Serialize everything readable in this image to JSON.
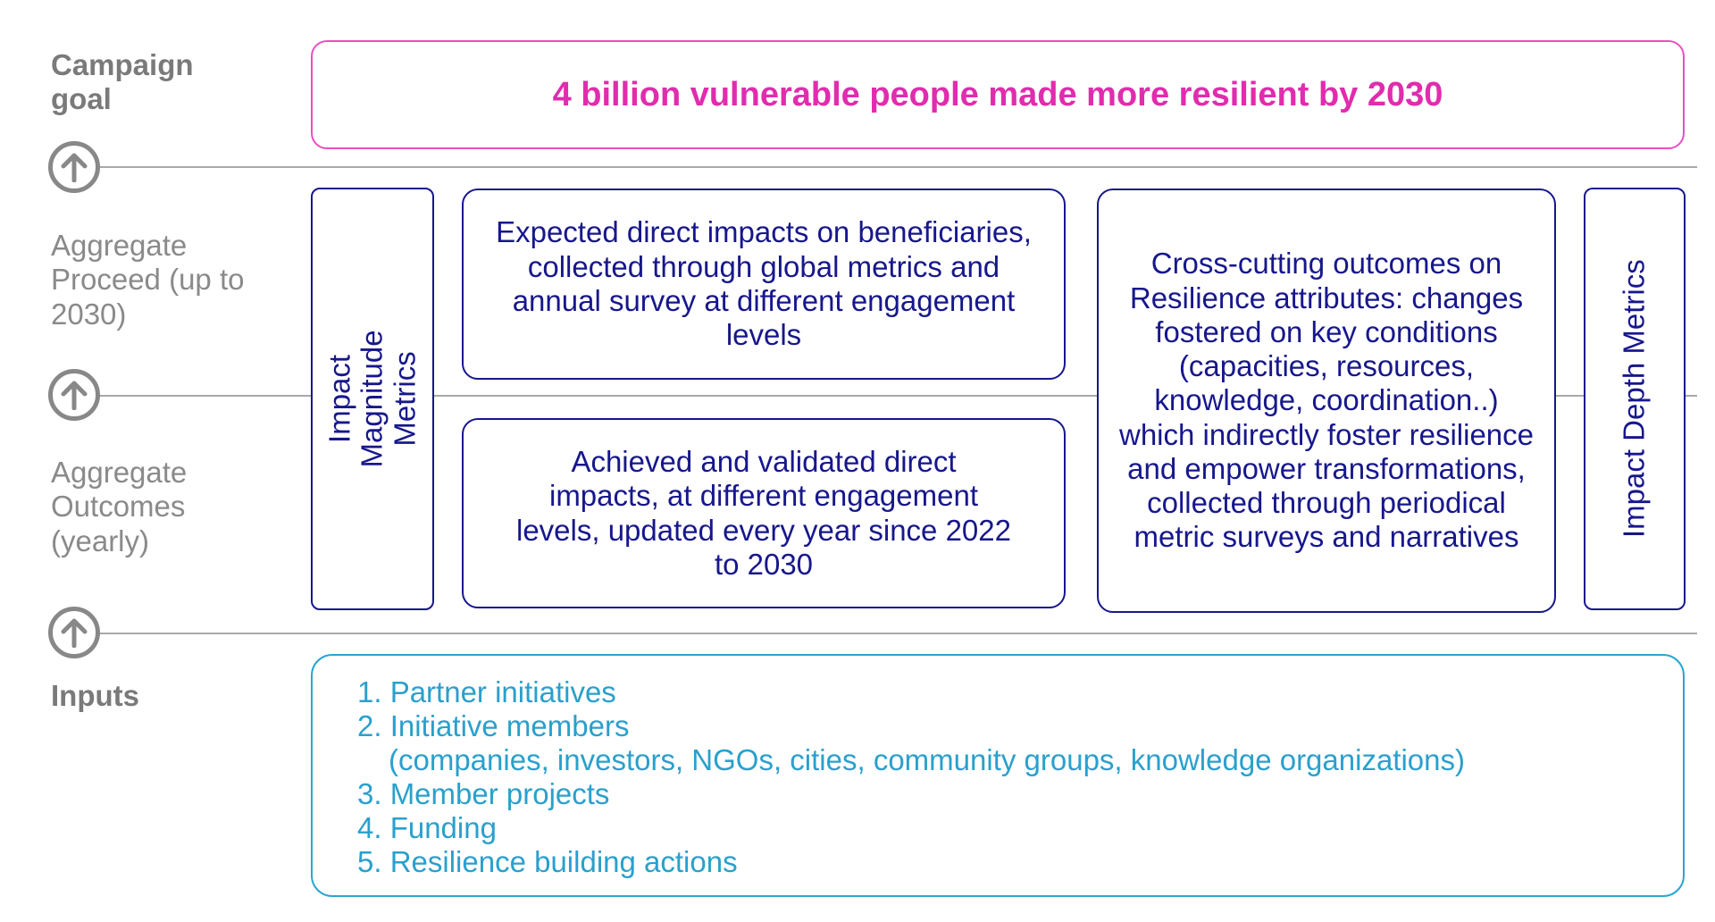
{
  "labels": {
    "campaign_goal": "Campaign goal",
    "aggregate_proceed": "Aggregate Proceed (up to 2030)",
    "aggregate_outcomes": "Aggregate Outcomes (yearly)",
    "inputs": "Inputs"
  },
  "goal": {
    "text": "4 billion vulnerable people made more resilient by 2030"
  },
  "metrics": {
    "impact_magnitude": "Impact Magnitude Metrics",
    "impact_depth": "Impact Depth Metrics"
  },
  "boxes": {
    "expected_impacts": "Expected direct impacts on beneficiaries, collected through global metrics and annual survey at different engagement levels",
    "achieved_impacts": "Achieved and validated direct impacts, at different engagement levels, updated every year since 2022 to 2030",
    "cross_cutting": "Cross-cutting outcomes on Resilience attributes: changes fostered on key conditions (capacities, resources, knowledge, coordination..) which indirectly foster resilience and empower transformations, collected through periodical metric surveys and narratives"
  },
  "inputs": {
    "items": [
      "1. Partner initiatives",
      "2. Initiative members",
      "(companies, investors, NGOs, cities, community groups, knowledge organizations)",
      "3. Member projects",
      "4. Funding",
      "5. Resilience building actions"
    ]
  },
  "icons": {
    "arrow": "arrow-up-circle-icon"
  },
  "colors": {
    "goal": "#e12cae",
    "primary": "#17178c",
    "inputs": "#2aa0cc",
    "label": "#7a7a7a",
    "line": "#a9a9a9"
  }
}
